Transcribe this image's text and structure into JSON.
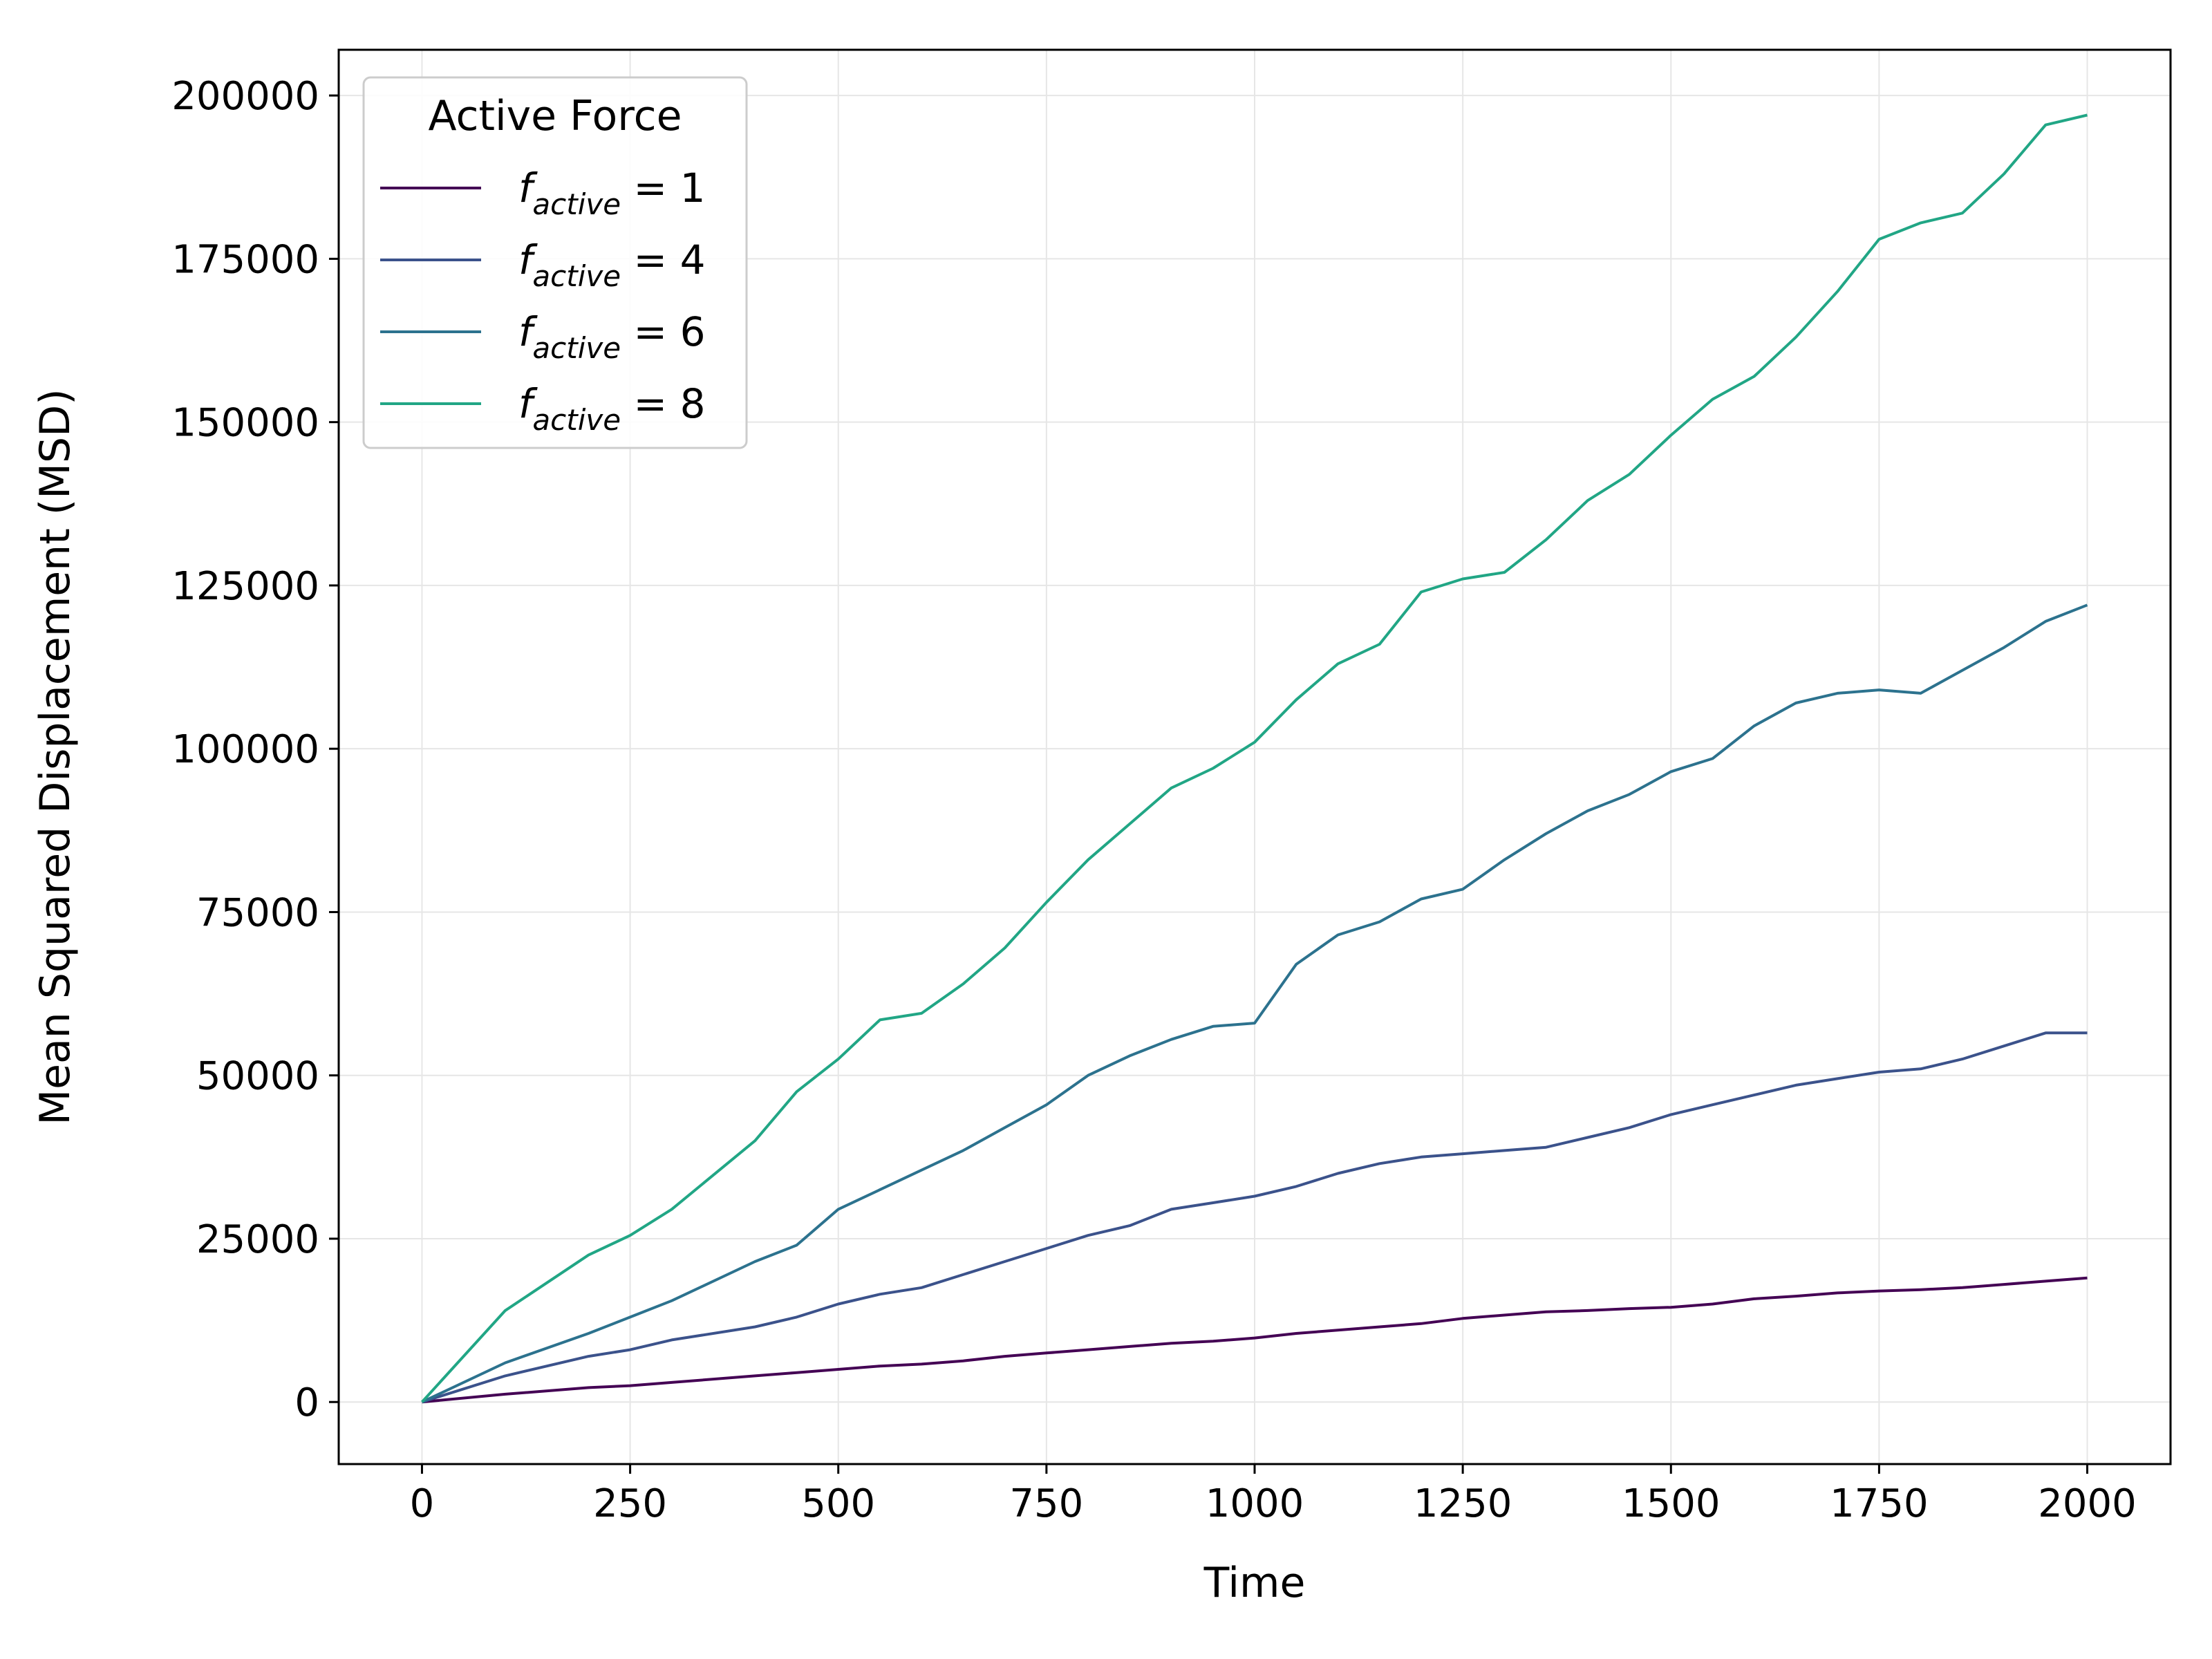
{
  "chart_data": {
    "type": "line",
    "title": "",
    "xlabel": "Time",
    "ylabel": "Mean Squared Displacement (MSD)",
    "xlim": [
      -100,
      2100
    ],
    "ylim": [
      -9500,
      207000
    ],
    "xticks": [
      0,
      250,
      500,
      750,
      1000,
      1250,
      1500,
      1750,
      2000
    ],
    "yticks": [
      0,
      25000,
      50000,
      75000,
      100000,
      125000,
      150000,
      175000,
      200000
    ],
    "grid": true,
    "legend": {
      "title": "Active Force",
      "position": "top-left",
      "entries": [
        {
          "main": "f",
          "sub": "active",
          "suffix": " = 1",
          "color": "#440154"
        },
        {
          "main": "f",
          "sub": "active",
          "suffix": " = 4",
          "color": "#3b528b"
        },
        {
          "main": "f",
          "sub": "active",
          "suffix": " = 6",
          "color": "#2c728e"
        },
        {
          "main": "f",
          "sub": "active",
          "suffix": " = 8",
          "color": "#21a685"
        }
      ]
    },
    "x": [
      0,
      100,
      200,
      250,
      300,
      400,
      450,
      500,
      550,
      600,
      650,
      700,
      750,
      800,
      850,
      900,
      950,
      1000,
      1050,
      1100,
      1150,
      1200,
      1250,
      1300,
      1350,
      1400,
      1450,
      1500,
      1550,
      1600,
      1650,
      1700,
      1750,
      1800,
      1850,
      1900,
      1950,
      2000
    ],
    "series": [
      {
        "name": "f_active = 1",
        "color": "#440154",
        "values": [
          0,
          1200,
          2200,
          2500,
          3000,
          4000,
          4500,
          5000,
          5500,
          5800,
          6300,
          7000,
          7500,
          8000,
          8500,
          9000,
          9300,
          9800,
          10500,
          11000,
          11500,
          12000,
          12800,
          13300,
          13800,
          14000,
          14300,
          14500,
          15000,
          15800,
          16200,
          16700,
          17000,
          17200,
          17500,
          18000,
          18500,
          19000
        ]
      },
      {
        "name": "f_active = 4",
        "color": "#3b528b",
        "values": [
          0,
          4000,
          7000,
          8000,
          9500,
          11500,
          13000,
          15000,
          16500,
          17500,
          19500,
          21500,
          23500,
          25500,
          27000,
          29500,
          30500,
          31500,
          33000,
          35000,
          36500,
          37500,
          38000,
          38500,
          39000,
          40500,
          42000,
          44000,
          45500,
          47000,
          48500,
          49500,
          50500,
          51000,
          52500,
          54500,
          56500,
          56500
        ]
      },
      {
        "name": "f_active = 6",
        "color": "#2c728e",
        "values": [
          0,
          6000,
          10500,
          13000,
          15500,
          21500,
          24000,
          29500,
          32500,
          35500,
          38500,
          42000,
          45500,
          50000,
          53000,
          55500,
          57500,
          58000,
          67000,
          71500,
          73500,
          77000,
          78500,
          83000,
          87000,
          90500,
          93000,
          96500,
          98500,
          103500,
          107000,
          108500,
          109000,
          108500,
          112000,
          115500,
          119500,
          122000
        ]
      },
      {
        "name": "f_active = 8",
        "color": "#21a685",
        "values": [
          0,
          14000,
          22500,
          25500,
          29500,
          40000,
          47500,
          52500,
          58500,
          59500,
          64000,
          69500,
          76500,
          83000,
          88500,
          94000,
          97000,
          101000,
          107500,
          113000,
          116000,
          124000,
          126000,
          127000,
          132000,
          138000,
          142000,
          148000,
          153500,
          157000,
          163000,
          170000,
          178000,
          180500,
          182000,
          188000,
          195500,
          197000
        ]
      }
    ]
  }
}
